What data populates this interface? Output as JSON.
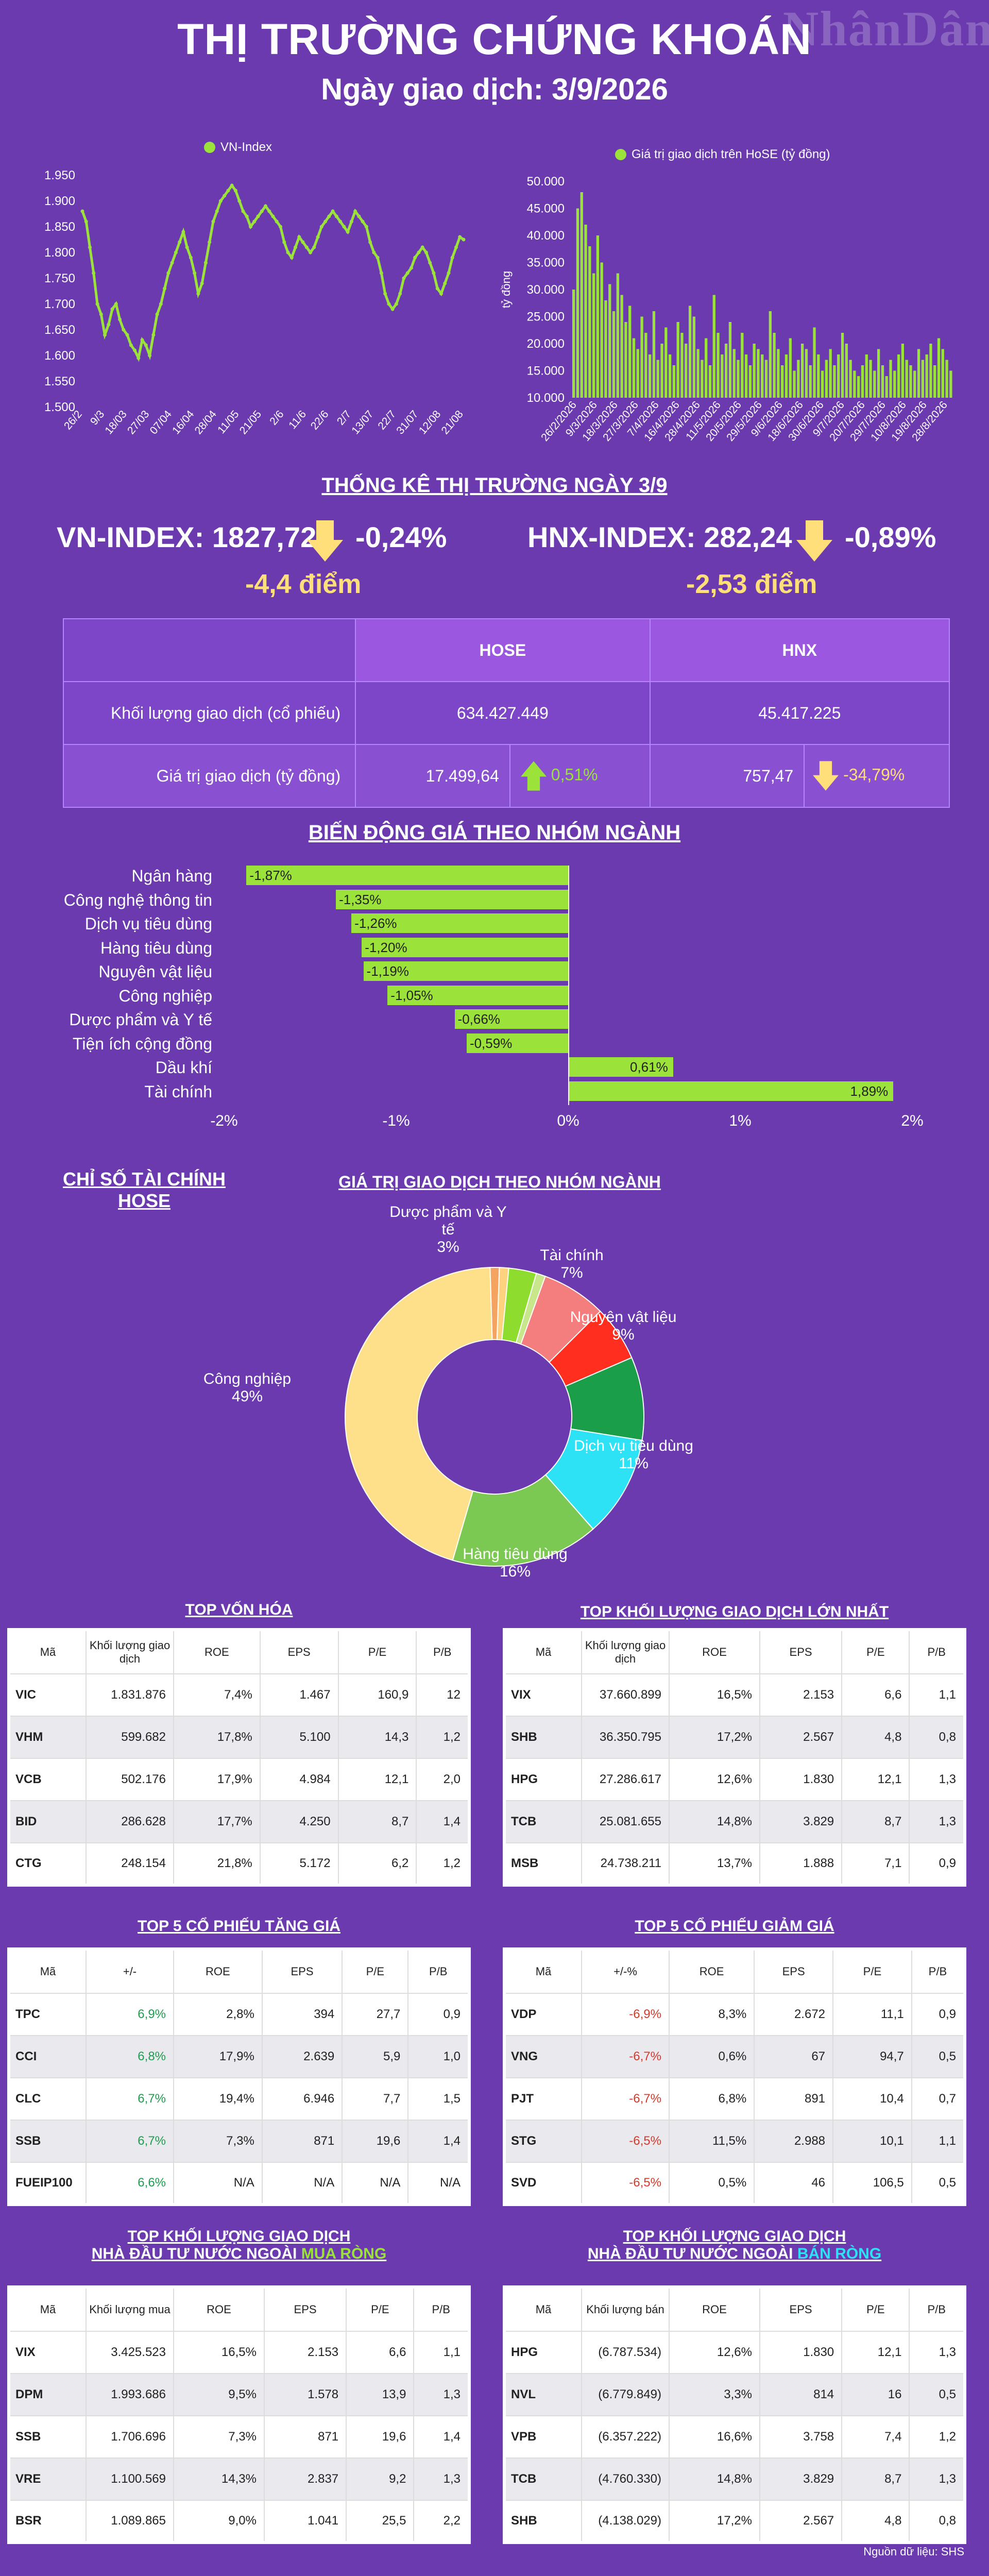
{
  "header": {
    "title": "THỊ TRƯỜNG CHỨNG KHOÁN",
    "subtitle": "Ngày giao dịch: 3/9/2026",
    "logo": "NhânDân"
  },
  "chart_data": [
    {
      "type": "line",
      "series": [
        {
          "name": "VN-Index",
          "color": "#9be23a"
        }
      ],
      "x_tick_labels": [
        "26/2",
        "9/3",
        "18/03",
        "27/03",
        "07/04",
        "16/04",
        "28/04",
        "11/05",
        "21/05",
        "2/6",
        "11/6",
        "22/6",
        "2/7",
        "13/07",
        "22/7",
        "31/07",
        "12/08",
        "21/08"
      ],
      "y_tick_labels": [
        "1.950",
        "1.900",
        "1.850",
        "1.800",
        "1.750",
        "1.700",
        "1.650",
        "1.600",
        "1.550",
        "1.500"
      ],
      "ylim": [
        1500,
        1950
      ],
      "values": [
        1880,
        1860,
        1810,
        1760,
        1700,
        1680,
        1640,
        1660,
        1690,
        1700,
        1670,
        1650,
        1640,
        1620,
        1610,
        1595,
        1630,
        1620,
        1600,
        1640,
        1680,
        1700,
        1730,
        1760,
        1780,
        1800,
        1820,
        1840,
        1810,
        1790,
        1760,
        1720,
        1740,
        1780,
        1820,
        1860,
        1880,
        1900,
        1910,
        1920,
        1930,
        1920,
        1900,
        1880,
        1870,
        1850,
        1860,
        1870,
        1880,
        1890,
        1880,
        1870,
        1860,
        1850,
        1820,
        1800,
        1790,
        1810,
        1830,
        1820,
        1810,
        1800,
        1810,
        1830,
        1850,
        1860,
        1870,
        1880,
        1870,
        1860,
        1850,
        1840,
        1860,
        1880,
        1870,
        1860,
        1850,
        1820,
        1800,
        1790,
        1760,
        1720,
        1700,
        1690,
        1700,
        1720,
        1750,
        1760,
        1770,
        1790,
        1800,
        1810,
        1800,
        1780,
        1760,
        1730,
        1720,
        1740,
        1760,
        1790,
        1810,
        1830,
        1825
      ]
    },
    {
      "type": "bar",
      "series": [
        {
          "name": "Giá trị giao dịch trên HoSE (tỷ đồng)",
          "color": "#9be23a"
        }
      ],
      "x_tick_labels": [
        "26/2/2026",
        "9/3/2026",
        "18/3/2026",
        "27/3/2026",
        "7/4/2026",
        "16/4/2026",
        "28/4/2026",
        "11/5/2026",
        "20/5/2026",
        "29/5/2026",
        "9/6/2026",
        "18/6/2026",
        "30/6/2026",
        "9/7/2026",
        "20/7/2026",
        "29/7/2026",
        "10/8/2026",
        "19/8/2026",
        "28/8/2026"
      ],
      "y_tick_labels": [
        "50.000",
        "45.000",
        "40.000",
        "35.000",
        "30.000",
        "25.000",
        "20.000",
        "15.000",
        "10.000"
      ],
      "ylabel": "tỷ đồng",
      "ylim": [
        10000,
        50000
      ],
      "values": [
        30000,
        45000,
        48000,
        42000,
        38000,
        33000,
        40000,
        35000,
        28000,
        31000,
        26000,
        33000,
        29000,
        24000,
        27000,
        21000,
        19000,
        25000,
        22000,
        18000,
        26000,
        17000,
        20000,
        23000,
        18000,
        16000,
        24000,
        22000,
        20000,
        27000,
        25000,
        19000,
        17000,
        21000,
        16000,
        29000,
        22000,
        18000,
        20000,
        24000,
        19000,
        17000,
        22000,
        18000,
        16000,
        20000,
        19000,
        18000,
        17000,
        26000,
        22000,
        19000,
        16000,
        18000,
        21000,
        15000,
        17000,
        20000,
        19000,
        16000,
        23000,
        18000,
        15000,
        17000,
        19000,
        16000,
        18000,
        22000,
        20000,
        17000,
        15000,
        14000,
        16000,
        18000,
        17000,
        15000,
        19000,
        16000,
        14000,
        17000,
        15000,
        18000,
        20000,
        17000,
        16000,
        15000,
        19000,
        17000,
        18000,
        20000,
        16000,
        21000,
        19000,
        17000,
        15000
      ]
    },
    {
      "type": "bar",
      "title": "BIẾN ĐỘNG GIÁ THEO NHÓM NGÀNH",
      "categories": [
        "Ngân hàng",
        "Công nghệ thông tin",
        "Dịch vụ tiêu dùng",
        "Hàng tiêu dùng",
        "Nguyên vật liệu",
        "Công nghiệp",
        "Dược phẩm và Y tế",
        "Tiện ích cộng đồng",
        "Dầu khí",
        "Tài chính"
      ],
      "values": [
        -1.87,
        -1.35,
        -1.26,
        -1.2,
        -1.19,
        -1.05,
        -0.66,
        -0.59,
        0.61,
        1.89
      ],
      "value_labels": [
        "-1,87%",
        "-1,35%",
        "-1,26%",
        "-1,20%",
        "-1,19%",
        "-1,05%",
        "-0,66%",
        "-0,59%",
        "0,61%",
        "1,89%"
      ],
      "x_tick_labels": [
        "-2%",
        "-1%",
        "0%",
        "1%",
        "2%"
      ],
      "xlim": [
        -2,
        2
      ]
    },
    {
      "type": "pie",
      "title": "GIÁ TRỊ GIAO DỊCH THEO NHÓM NGÀNH",
      "slices": [
        {
          "label": "Dược phẩm và Y tế",
          "value": 3,
          "pct_label": "3%",
          "color": "#8ddc2e"
        },
        {
          "label": "Tài chính",
          "value": 7,
          "pct_label": "7%",
          "color": "#f47e7e"
        },
        {
          "label": "Nguyên vật liệu",
          "value": 9,
          "pct_label": "9%",
          "color": "#1a9e4a"
        },
        {
          "label": "Dịch vụ tiêu dùng",
          "value": 11,
          "pct_label": "11%",
          "color": "#2ee2f5"
        },
        {
          "label": "Hàng tiêu dùng",
          "value": 16,
          "pct_label": "16%",
          "color": "#7bc852"
        },
        {
          "label": "Công nghiệp",
          "value": 49,
          "pct_label": "49%",
          "color": "#ffe08a"
        }
      ],
      "extra_slices": [
        {
          "value": 1,
          "color": "#f4a460"
        },
        {
          "value": 1,
          "color": "#ffd27f"
        },
        {
          "value": 4,
          "color": "#ff2e1e"
        }
      ]
    }
  ],
  "market": {
    "section_title": "THỐNG KÊ THỊ TRƯỜNG NGÀY 3/9",
    "vn_label": "VN-INDEX: 1827,72",
    "vn_pct": "-0,24%",
    "vn_pts": "-4,4 điểm",
    "hnx_label": "HNX-INDEX: 282,24",
    "hnx_pct": "-0,89%",
    "hnx_pts": "-2,53 điểm"
  },
  "stats": {
    "col_hose": "HOSE",
    "col_hnx": "HNX",
    "row1_label": "Khối lượng giao dịch (cổ phiếu)",
    "row1_hose": "634.427.449",
    "row1_hnx": "45.417.225",
    "row2_label": "Giá trị giao dịch (tỷ đồng)",
    "row2_hose": "17.499,64",
    "row2_hose_chg": "0,51%",
    "row2_hnx": "757,47",
    "row2_hnx_chg": "-34,79%"
  },
  "fin_title": "CHỈ SỐ TÀI CHÍNH HOSE",
  "tables": {
    "t1": {
      "title": "TOP VỐN HÓA",
      "headers": [
        "Mã",
        "Khối lượng giao dịch",
        "ROE",
        "EPS",
        "P/E",
        "P/B"
      ],
      "rows": [
        [
          "VIC",
          "1.831.876",
          "7,4%",
          "1.467",
          "160,9",
          "12"
        ],
        [
          "VHM",
          "599.682",
          "17,8%",
          "5.100",
          "14,3",
          "1,2"
        ],
        [
          "VCB",
          "502.176",
          "17,9%",
          "4.984",
          "12,1",
          "2,0"
        ],
        [
          "BID",
          "286.628",
          "17,7%",
          "4.250",
          "8,7",
          "1,4"
        ],
        [
          "CTG",
          "248.154",
          "21,8%",
          "5.172",
          "6,2",
          "1,2"
        ]
      ]
    },
    "t2": {
      "title": "TOP KHỐI LƯỢNG GIAO DỊCH LỚN NHẤT",
      "headers": [
        "Mã",
        "Khối lượng giao dịch",
        "ROE",
        "EPS",
        "P/E",
        "P/B"
      ],
      "rows": [
        [
          "VIX",
          "37.660.899",
          "16,5%",
          "2.153",
          "6,6",
          "1,1"
        ],
        [
          "SHB",
          "36.350.795",
          "17,2%",
          "2.567",
          "4,8",
          "0,8"
        ],
        [
          "HPG",
          "27.286.617",
          "12,6%",
          "1.830",
          "12,1",
          "1,3"
        ],
        [
          "TCB",
          "25.081.655",
          "14,8%",
          "3.829",
          "8,7",
          "1,3"
        ],
        [
          "MSB",
          "24.738.211",
          "13,7%",
          "1.888",
          "7,1",
          "0,9"
        ]
      ]
    },
    "t3": {
      "title": "TOP 5 CỔ PHIẾU TĂNG GIÁ",
      "headers": [
        "Mã",
        "+/-",
        "ROE",
        "EPS",
        "P/E",
        "P/B"
      ],
      "rows": [
        [
          "TPC",
          "6,9%",
          "2,8%",
          "394",
          "27,7",
          "0,9"
        ],
        [
          "CCI",
          "6,8%",
          "17,9%",
          "2.639",
          "5,9",
          "1,0"
        ],
        [
          "CLC",
          "6,7%",
          "19,4%",
          "6.946",
          "7,7",
          "1,5"
        ],
        [
          "SSB",
          "6,7%",
          "7,3%",
          "871",
          "19,6",
          "1,4"
        ],
        [
          "FUEIP100",
          "6,6%",
          "N/A",
          "N/A",
          "N/A",
          "N/A"
        ]
      ]
    },
    "t4": {
      "title": "TOP 5 CỔ PHIẾU GIẢM GIÁ",
      "headers": [
        "Mã",
        "+/-%",
        "ROE",
        "EPS",
        "P/E",
        "P/B"
      ],
      "rows": [
        [
          "VDP",
          "-6,9%",
          "8,3%",
          "2.672",
          "11,1",
          "0,9"
        ],
        [
          "VNG",
          "-6,7%",
          "0,6%",
          "67",
          "94,7",
          "0,5"
        ],
        [
          "PJT",
          "-6,7%",
          "6,8%",
          "891",
          "10,4",
          "0,7"
        ],
        [
          "STG",
          "-6,5%",
          "11,5%",
          "2.988",
          "10,1",
          "1,1"
        ],
        [
          "SVD",
          "-6,5%",
          "0,5%",
          "46",
          "106,5",
          "0,5"
        ]
      ]
    },
    "t5": {
      "title_l1": "TOP KHỐI LƯỢNG GIAO DỊCH",
      "title_l2a": "NHÀ ĐẦU TƯ NƯỚC NGOÀI ",
      "title_l2b": "MUA RÒNG",
      "headers": [
        "Mã",
        "Khối lượng mua",
        "ROE",
        "EPS",
        "P/E",
        "P/B"
      ],
      "rows": [
        [
          "VIX",
          "3.425.523",
          "16,5%",
          "2.153",
          "6,6",
          "1,1"
        ],
        [
          "DPM",
          "1.993.686",
          "9,5%",
          "1.578",
          "13,9",
          "1,3"
        ],
        [
          "SSB",
          "1.706.696",
          "7,3%",
          "871",
          "19,6",
          "1,4"
        ],
        [
          "VRE",
          "1.100.569",
          "14,3%",
          "2.837",
          "9,2",
          "1,3"
        ],
        [
          "BSR",
          "1.089.865",
          "9,0%",
          "1.041",
          "25,5",
          "2,2"
        ]
      ]
    },
    "t6": {
      "title_l1": "TOP KHỐI LƯỢNG GIAO DỊCH",
      "title_l2a": "NHÀ ĐẦU TƯ NƯỚC NGOÀI ",
      "title_l2b": "BÁN RÒNG",
      "headers": [
        "Mã",
        "Khối lượng bán",
        "ROE",
        "EPS",
        "P/E",
        "P/B"
      ],
      "rows": [
        [
          "HPG",
          "(6.787.534)",
          "12,6%",
          "1.830",
          "12,1",
          "1,3"
        ],
        [
          "NVL",
          "(6.779.849)",
          "3,3%",
          "814",
          "16",
          "0,5"
        ],
        [
          "VPB",
          "(6.357.222)",
          "16,6%",
          "3.758",
          "7,4",
          "1,2"
        ],
        [
          "TCB",
          "(4.760.330)",
          "14,8%",
          "3.829",
          "8,7",
          "1,3"
        ],
        [
          "SHB",
          "(4.138.029)",
          "17,2%",
          "2.567",
          "4,8",
          "0,8"
        ]
      ]
    }
  },
  "source": "Nguồn dữ liệu: SHS",
  "colors": {
    "bg": "#6a3aae",
    "green": "#9be23a",
    "yellow": "#ffdf7a",
    "up": "#1e9e4e",
    "down": "#d63a2c"
  }
}
